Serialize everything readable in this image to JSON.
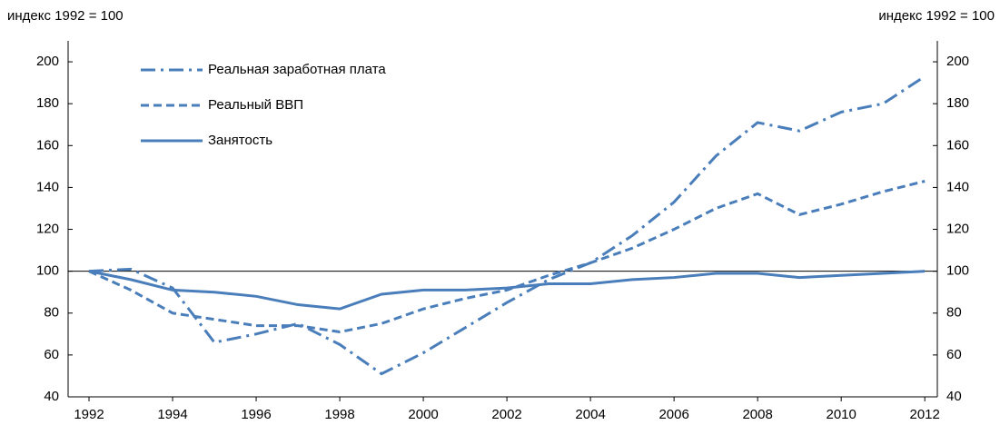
{
  "chart_data": {
    "type": "line",
    "y_label": "индекс 1992 = 100",
    "y2_label": "индекс 1992 = 100",
    "x": [
      1992,
      1993,
      1994,
      1995,
      1996,
      1997,
      1998,
      1999,
      2000,
      2001,
      2002,
      2003,
      2004,
      2005,
      2006,
      2007,
      2008,
      2009,
      2010,
      2011,
      2012
    ],
    "xlim": [
      1991.5,
      2012.3
    ],
    "xticks": [
      1992,
      1994,
      1996,
      1998,
      2000,
      2002,
      2004,
      2006,
      2008,
      2010,
      2012
    ],
    "ylim": [
      40,
      210
    ],
    "yticks": [
      40,
      60,
      80,
      100,
      120,
      140,
      160,
      180,
      200
    ],
    "y2lim": [
      40,
      210
    ],
    "y2ticks": [
      40,
      60,
      80,
      100,
      120,
      140,
      160,
      180,
      200
    ],
    "reference_line": 100,
    "legend": "upper left",
    "series": [
      {
        "name": "Реальная заработная плата",
        "color": "#4a7ebb",
        "style": "dash-dot",
        "values": [
          100,
          101,
          92,
          66,
          70,
          75,
          65,
          51,
          61,
          73,
          85,
          96,
          104,
          117,
          133,
          155,
          171,
          167,
          176,
          180,
          193
        ]
      },
      {
        "name": "Реальный ВВП",
        "color": "#4a7ebb",
        "style": "dashed",
        "values": [
          100,
          91,
          80,
          77,
          74,
          74,
          71,
          75,
          82,
          87,
          91,
          98,
          104,
          111,
          120,
          130,
          137,
          127,
          132,
          138,
          143
        ]
      },
      {
        "name": "Занятость",
        "color": "#4a7ebb",
        "style": "solid",
        "values": [
          100,
          96,
          91,
          90,
          88,
          84,
          82,
          89,
          91,
          91,
          92,
          94,
          94,
          96,
          97,
          99,
          99,
          97,
          98,
          99,
          100
        ]
      }
    ]
  }
}
